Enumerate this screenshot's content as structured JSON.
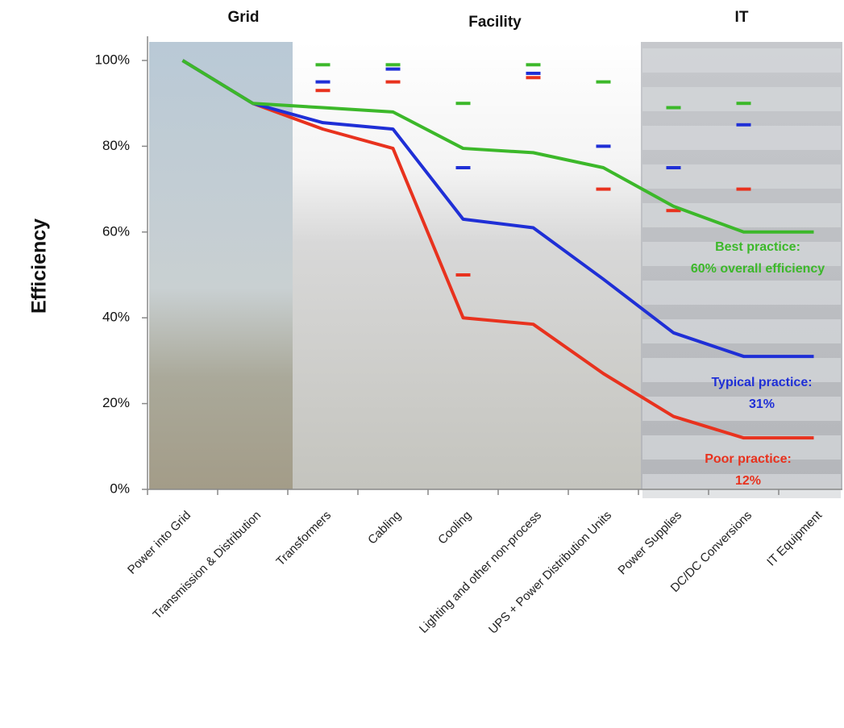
{
  "chart_data": {
    "type": "line",
    "ylabel": "Efficiency",
    "sections": [
      "Grid",
      "Facility",
      "IT"
    ],
    "categories": [
      "Power into Grid",
      "Transmission & Distribution",
      "Transformers",
      "Cabling",
      "Cooling",
      "Lighting and other non-process",
      "UPS + Power Distribution Units",
      "Power Supplies",
      "DC/DC Conversions",
      "IT Equipment"
    ],
    "series": [
      {
        "color": "#3cb82a",
        "values": [
          100,
          90,
          89,
          88,
          79.5,
          78.5,
          75,
          66,
          60,
          60
        ],
        "stage_values": [
          null,
          null,
          99,
          99,
          90,
          99,
          95,
          89,
          90,
          null
        ]
      },
      {
        "color": "#1f2fd6",
        "values": [
          100,
          90,
          85.5,
          84,
          63,
          61,
          49,
          36.5,
          31,
          31
        ],
        "stage_values": [
          null,
          null,
          95,
          98,
          75,
          97,
          80,
          75,
          85,
          null
        ]
      },
      {
        "color": "#e8321e",
        "values": [
          100,
          90,
          84,
          79.5,
          40,
          38.5,
          27,
          17,
          12,
          12
        ],
        "stage_values": [
          null,
          null,
          93,
          95,
          50,
          96,
          70,
          65,
          70,
          null
        ]
      }
    ],
    "annotations": [
      {
        "lines": [
          "Best practice:",
          "60% overall efficiency"
        ],
        "color": "#3cb82a"
      },
      {
        "lines": [
          "Typical practice:",
          "31%"
        ],
        "color": "#1f2fd6"
      },
      {
        "lines": [
          "Poor practice:",
          "12%"
        ],
        "color": "#e8321e"
      }
    ],
    "ylim": [
      0,
      100
    ],
    "yticks": [
      {
        "value": 0,
        "label": "0%"
      },
      {
        "value": 20,
        "label": "20%"
      },
      {
        "value": 40,
        "label": "40%"
      },
      {
        "value": 60,
        "label": "60%"
      },
      {
        "value": 80,
        "label": "80%"
      },
      {
        "value": 100,
        "label": "100%"
      }
    ]
  }
}
